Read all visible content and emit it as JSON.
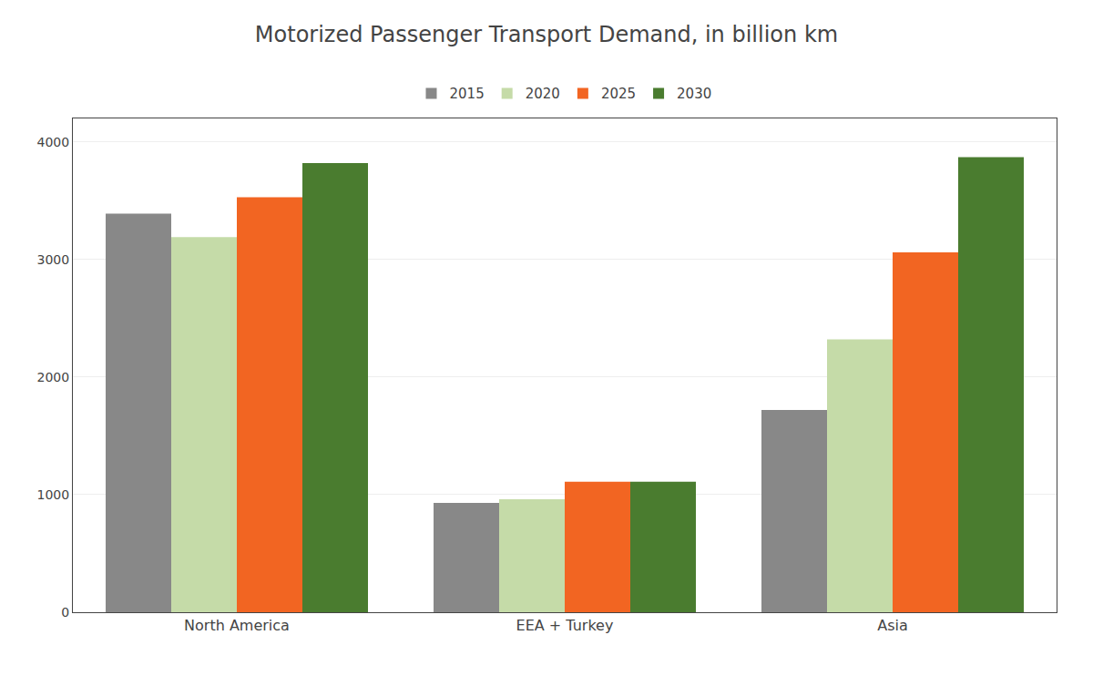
{
  "chart_data": {
    "type": "bar",
    "title": "Motorized Passenger Transport Demand, in billion km",
    "categories": [
      "North America",
      "EEA + Turkey",
      "Asia"
    ],
    "series": [
      {
        "name": "2015",
        "color": "#888888",
        "values": [
          3390,
          930,
          1720
        ]
      },
      {
        "name": "2020",
        "color": "#c5dba8",
        "values": [
          3190,
          960,
          2320
        ]
      },
      {
        "name": "2025",
        "color": "#f26522",
        "values": [
          3530,
          1110,
          3060
        ]
      },
      {
        "name": "2030",
        "color": "#4a7c2f",
        "values": [
          3820,
          1110,
          3870
        ]
      }
    ],
    "ylim": [
      0,
      4200
    ],
    "yticks": [
      0,
      1000,
      2000,
      3000,
      4000
    ],
    "grid": true,
    "legend": "top"
  }
}
